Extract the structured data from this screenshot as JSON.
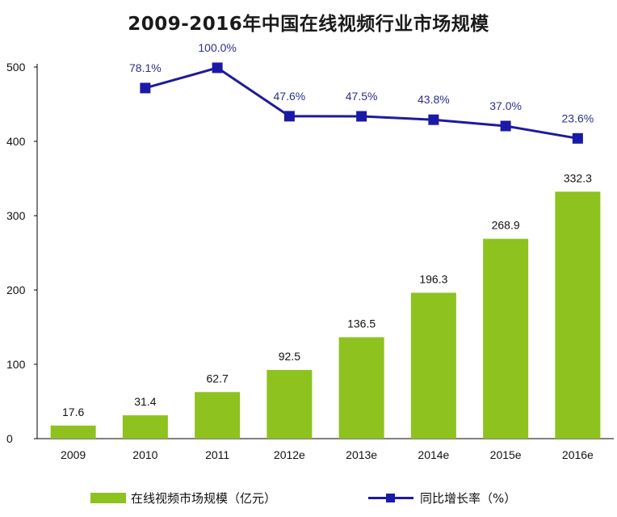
{
  "title": "2009-2016年中国在线视频行业市场规模",
  "colors": {
    "bar": "#8dc21f",
    "line": "#1f1a9c",
    "marker": "#1a1aa8",
    "label_line": "#2b2f8f",
    "axis": "#000000"
  },
  "legend": {
    "bar_label": "在线视频市场规模（亿元）",
    "line_label": "同比增长率（%）"
  },
  "chart_data": {
    "type": "bar",
    "categories": [
      "2009",
      "2010",
      "2011",
      "2012e",
      "2013e",
      "2014e",
      "2015e",
      "2016e"
    ],
    "series": [
      {
        "name": "在线视频市场规模（亿元）",
        "type": "bar",
        "values": [
          17.6,
          31.4,
          62.7,
          92.5,
          136.5,
          196.3,
          268.9,
          332.3
        ],
        "labels": [
          "17.6",
          "31.4",
          "62.7",
          "92.5",
          "136.5",
          "196.3",
          "268.9",
          "332.3"
        ]
      },
      {
        "name": "同比增长率（%）",
        "type": "line",
        "values": [
          null,
          78.1,
          100.0,
          47.6,
          47.5,
          43.8,
          37.0,
          23.6
        ],
        "labels": [
          null,
          "78.1%",
          "100.0%",
          "47.6%",
          "47.5%",
          "43.8%",
          "37.0%",
          "23.6%"
        ]
      }
    ],
    "y_ticks": [
      "0",
      "100",
      "200",
      "300",
      "400",
      "500"
    ],
    "ylim": [
      0,
      500
    ],
    "grid": false,
    "legend_position": "bottom"
  }
}
